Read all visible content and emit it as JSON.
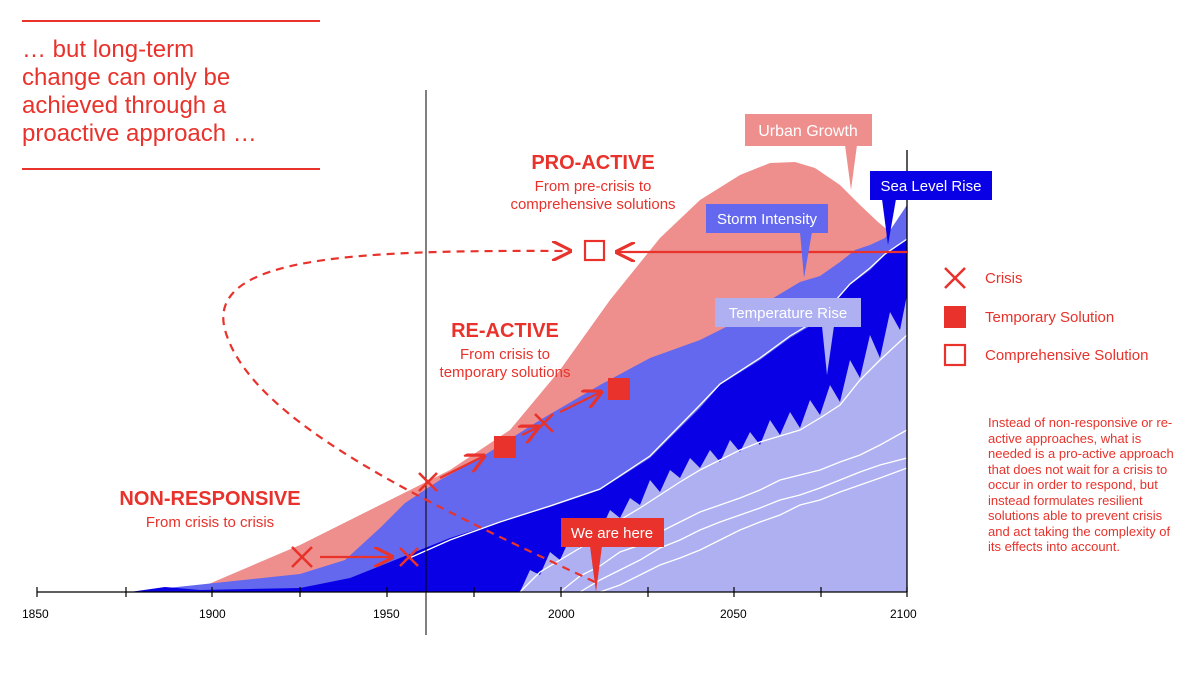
{
  "headline": "… but long-term\nchange can only be\nachieved through a\nproactive approach …",
  "stages": {
    "non_responsive": {
      "title": "NON-RESPONSIVE",
      "subtitle": "From crisis to crisis"
    },
    "re_active": {
      "title": "RE-ACTIVE",
      "subtitle": "From crisis to\ntemporary solutions"
    },
    "pro_active": {
      "title": "PRO-ACTIVE",
      "subtitle": "From pre-crisis to\ncomprehensive solutions"
    }
  },
  "callouts": {
    "urban_growth": "Urban Growth",
    "sea_level_rise": "Sea Level Rise",
    "storm_intensity": "Storm Intensity",
    "temperature_rise": "Temperature Rise",
    "we_are_here": "We are here"
  },
  "axis": {
    "ticks": [
      "1850",
      "1900",
      "1950",
      "2000",
      "2050",
      "2100"
    ]
  },
  "legend": {
    "crisis": "Crisis",
    "temporary_solution": "Temporary Solution",
    "comprehensive_solution": "Comprehensive Solution"
  },
  "note": "Instead of non-responsive or re-active approaches, what is needed is a pro-active approach that does not wait for a crisis to occur in order to respond, but instead formulates resilient solutions able to prevent crisis and act taking the complexity of its effects into account.",
  "colors": {
    "accent_red": "#e8322b",
    "urban_growth": "#ee8f8d",
    "storm_intensity": "#6468ee",
    "sea_level_rise": "#0a00e6",
    "temperature_rise": "#aeb0f2"
  }
}
